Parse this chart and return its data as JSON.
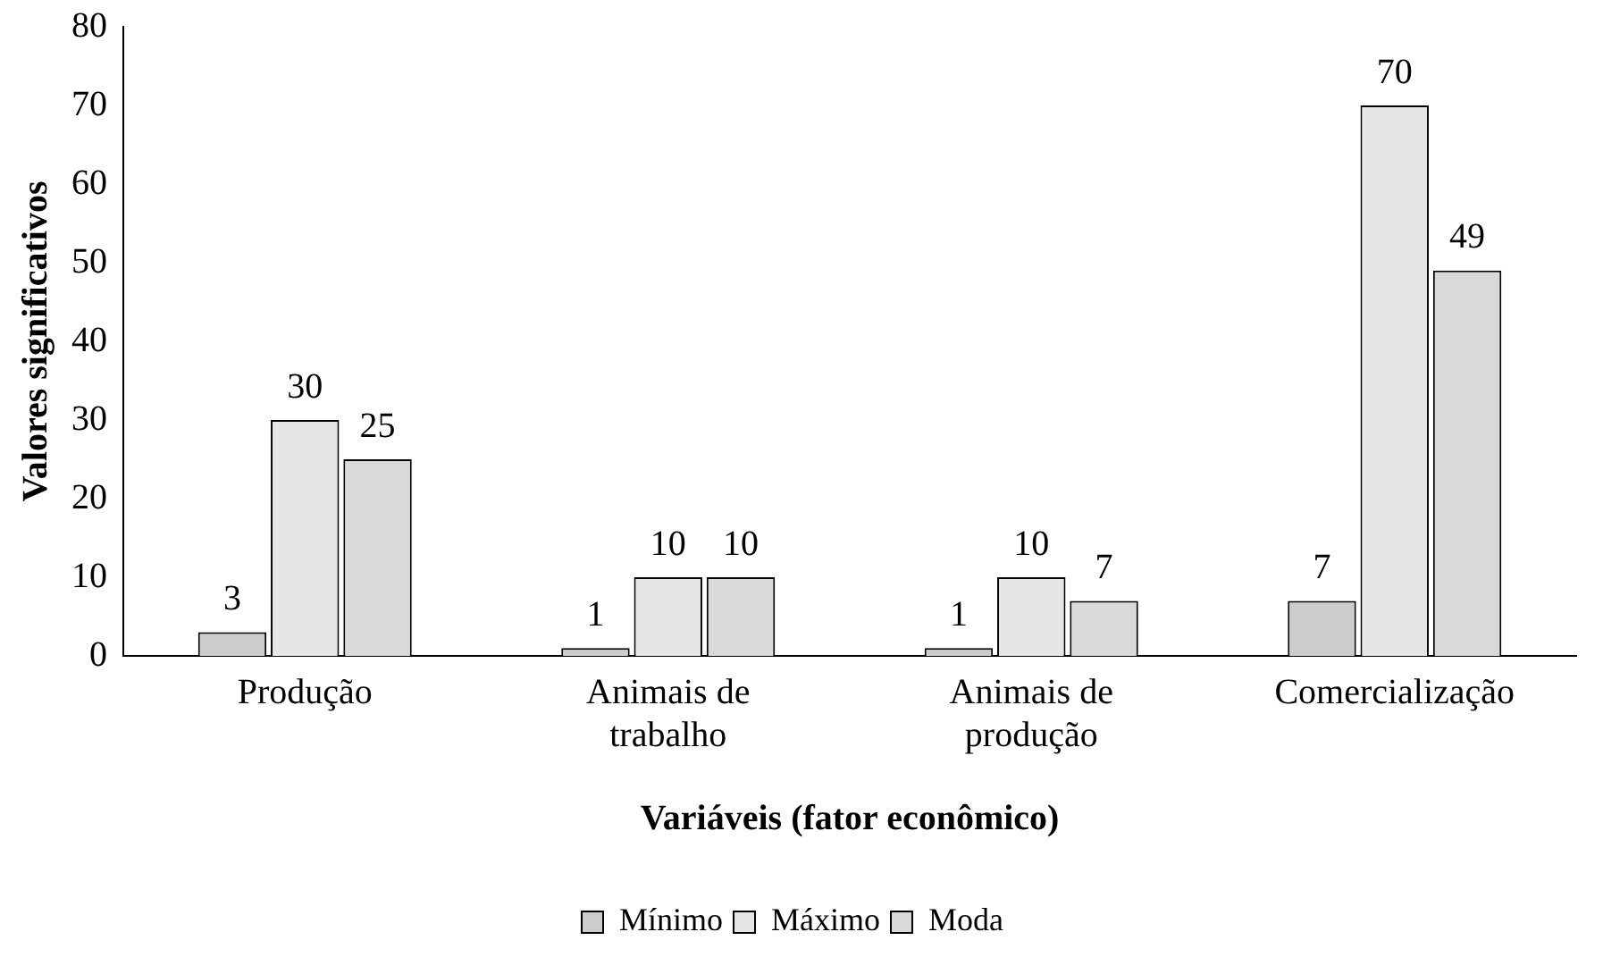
{
  "chart_data": {
    "type": "bar",
    "xlabel": "Variáveis (fator econômico)",
    "ylabel": "Valores significativos",
    "categories": [
      "Produção",
      "Animais de\ntrabalho",
      "Animais de\nprodução",
      "Comercialização"
    ],
    "series": [
      {
        "name": "Mínimo",
        "color": "#cccccc",
        "values": [
          3,
          1,
          1,
          7
        ]
      },
      {
        "name": "Máximo",
        "color": "#e6e6e6",
        "values": [
          30,
          10,
          10,
          70
        ]
      },
      {
        "name": "Moda",
        "color": "#d9d9d9",
        "values": [
          25,
          10,
          7,
          49
        ]
      }
    ],
    "ylim": [
      0,
      80
    ],
    "yticks": [
      0,
      10,
      20,
      30,
      40,
      50,
      60,
      70,
      80
    ],
    "grid": false,
    "legend": "bottom",
    "data_labels": true
  }
}
